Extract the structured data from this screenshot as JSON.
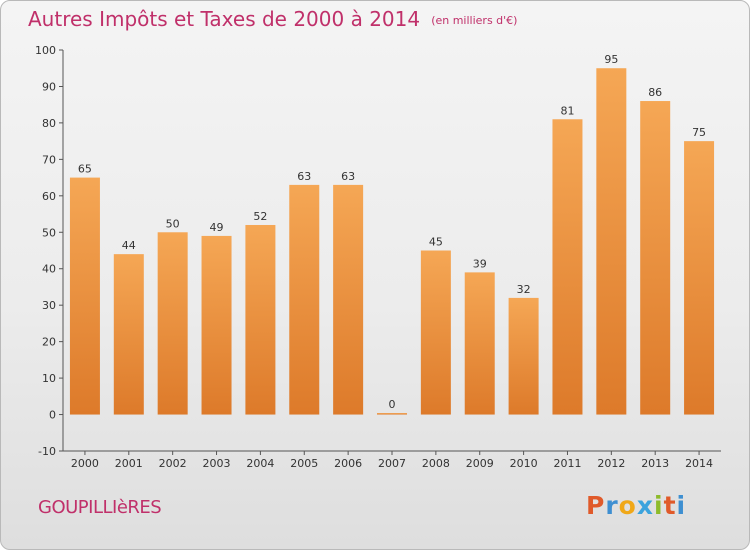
{
  "header": {
    "title": "Autres Impôts et Taxes de 2000 à 2014",
    "unit": "(en milliers d'€)"
  },
  "commune": "GOUPILLIèRES",
  "logo": {
    "letters": [
      "P",
      "r",
      "o",
      "x",
      "i",
      "t",
      "i"
    ],
    "text": "Proxiti"
  },
  "colors": {
    "title": "#c0306a",
    "bar_light": "#f5a755",
    "bar_dark": "#dd7a2a",
    "axis": "#555555"
  },
  "chart_data": {
    "type": "bar",
    "title": "Autres Impôts et Taxes de 2000 à 2014",
    "subtitle": "(en milliers d'€)",
    "categories": [
      "2000",
      "2001",
      "2002",
      "2003",
      "2004",
      "2005",
      "2006",
      "2007",
      "2008",
      "2009",
      "2010",
      "2011",
      "2012",
      "2013",
      "2014"
    ],
    "values": [
      65,
      44,
      50,
      49,
      52,
      63,
      63,
      0,
      45,
      39,
      32,
      81,
      95,
      86,
      75
    ],
    "ylim": [
      -10,
      100
    ],
    "yticks": [
      -10,
      0,
      10,
      20,
      30,
      40,
      50,
      60,
      70,
      80,
      90,
      100
    ],
    "grid": false,
    "legend": "none"
  }
}
